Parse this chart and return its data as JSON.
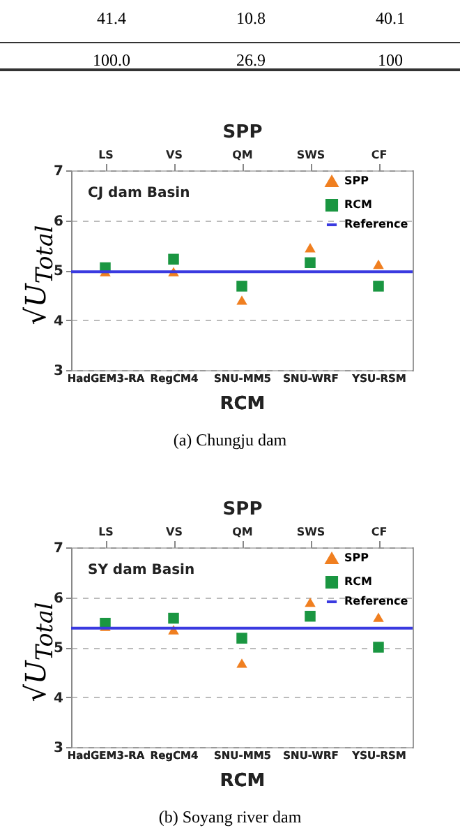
{
  "chart_data": [
    {
      "type": "other",
      "annotations": [
        "41.4",
        "10.8",
        "40.1",
        "100.0",
        "26.9",
        "100"
      ]
    },
    {
      "type": "scatter",
      "xlabel": "RCM",
      "x2label": "SPP",
      "ylabel": "√U$_{Total}$",
      "categories": [
        "HadGEM3-RA",
        "RegCM4",
        "SNU-MM5",
        "SNU-WRF",
        "YSU-RSM"
      ],
      "series": [
        {
          "name": "SPP",
          "color": "#f07f20",
          "marker": "triangle",
          "values": [
            4.97,
            4.97,
            4.4,
            5.45,
            5.12
          ]
        },
        {
          "name": "RCM",
          "color": "#1a9641",
          "marker": "square",
          "values": [
            5.05,
            5.22,
            4.68,
            5.15,
            4.68
          ]
        }
      ],
      "ref_lines": [
        {
          "axis": "y",
          "value": 4.97,
          "label": "Reference",
          "color": "#3a3ae0"
        }
      ],
      "ylim": [
        3,
        7
      ],
      "yticks": [
        3,
        4,
        5,
        6,
        7
      ],
      "grid": "y",
      "legend": "top right",
      "annotations": [
        "CJ dam Basin",
        "(a)  Chungju  dam",
        "LS",
        "VS",
        "QM",
        "SWS",
        "CF"
      ]
    },
    {
      "type": "scatter",
      "xlabel": "RCM",
      "x2label": "SPP",
      "ylabel": "√U$_{Total}$",
      "categories": [
        "HadGEM3-RA",
        "RegCM4",
        "SNU-MM5",
        "SNU-WRF",
        "YSU-RSM"
      ],
      "series": [
        {
          "name": "SPP",
          "color": "#f07f20",
          "marker": "triangle",
          "values": [
            5.42,
            5.35,
            4.68,
            5.9,
            5.6
          ]
        },
        {
          "name": "RCM",
          "color": "#1a9641",
          "marker": "square",
          "values": [
            5.48,
            5.58,
            5.18,
            5.62,
            5.0
          ]
        }
      ],
      "ref_lines": [
        {
          "axis": "y",
          "value": 5.38,
          "label": "Reference",
          "color": "#3a3ae0"
        }
      ],
      "ylim": [
        3,
        7
      ],
      "yticks": [
        3,
        4,
        5,
        6,
        7
      ],
      "grid": "y",
      "legend": "top right",
      "annotations": [
        "SY dam Basin",
        "(b)  Soyang  river  dam",
        "LS",
        "VS",
        "QM",
        "SWS",
        "CF"
      ]
    }
  ]
}
